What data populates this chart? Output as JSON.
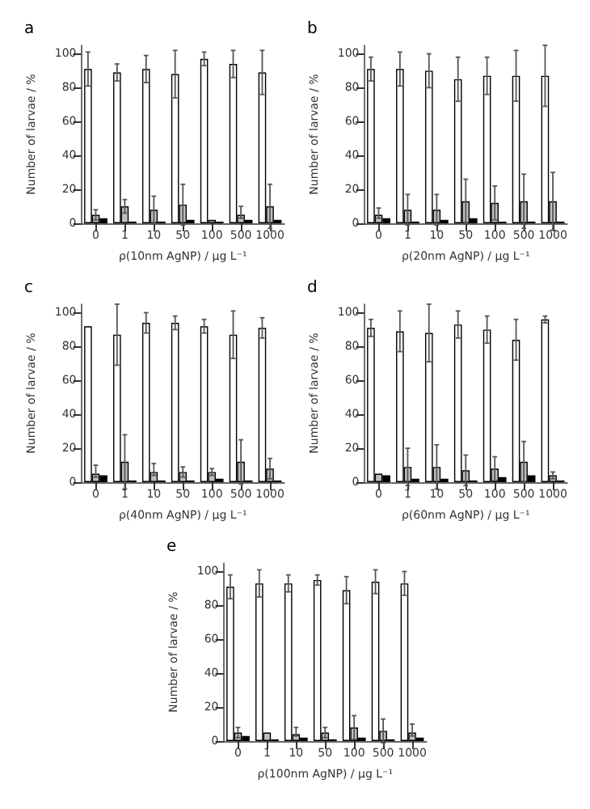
{
  "chart_data": [
    {
      "type": "bar",
      "title": "a",
      "xlabel": "ρ(10nm AgNP) / µg L⁻¹",
      "ylabel": "Number of larvae / %",
      "categories": [
        "0",
        "1",
        "10",
        "50",
        "100",
        "500",
        "1000"
      ],
      "ylim": [
        0,
        105
      ],
      "yticks": [
        0,
        20,
        40,
        60,
        80,
        100
      ],
      "series": [
        {
          "color": "#ffffff",
          "values": [
            91,
            89,
            91,
            88,
            97,
            94,
            89
          ],
          "errors": [
            10,
            5,
            8,
            14,
            4,
            8,
            13
          ]
        },
        {
          "color": "#bfbfbf",
          "values": [
            5,
            10,
            8,
            11,
            2,
            5,
            10
          ],
          "errors": [
            3,
            4,
            8,
            12,
            null,
            [
              3,
              10
            ],
            13
          ]
        },
        {
          "color": "#000000",
          "values": [
            3,
            1,
            1,
            2,
            1,
            2,
            2
          ]
        }
      ]
    },
    {
      "type": "bar",
      "title": "b",
      "xlabel": "ρ(20nm AgNP) / µg L⁻¹",
      "ylabel": "Number of larvae / %",
      "categories": [
        "0",
        "1",
        "10",
        "50",
        "100",
        "500",
        "1000"
      ],
      "ylim": [
        0,
        105
      ],
      "yticks": [
        0,
        20,
        40,
        60,
        80,
        100
      ],
      "series": [
        {
          "color": "#ffffff",
          "values": [
            91,
            91,
            90,
            85,
            87,
            87,
            87
          ],
          "errors": [
            7,
            10,
            10,
            13,
            11,
            15,
            18
          ]
        },
        {
          "color": "#bfbfbf",
          "values": [
            5,
            8,
            8,
            13,
            12,
            13,
            13
          ],
          "errors": [
            [
              3,
              9
            ],
            9,
            9,
            13,
            10,
            16,
            17
          ]
        },
        {
          "color": "#000000",
          "values": [
            3,
            1,
            2,
            3,
            1,
            1,
            1
          ]
        }
      ]
    },
    {
      "type": "bar",
      "title": "c",
      "xlabel": "ρ(40nm AgNP) / µg L⁻¹",
      "ylabel": "Number of larvae / %",
      "categories": [
        "0",
        "1",
        "10",
        "50",
        "100",
        "500",
        "1000"
      ],
      "ylim": [
        0,
        105
      ],
      "yticks": [
        0,
        20,
        40,
        60,
        80,
        100
      ],
      "series": [
        {
          "color": "#ffffff",
          "values": [
            92,
            87,
            94,
            94,
            92,
            87,
            91
          ],
          "errors": [
            null,
            18,
            6,
            4,
            4,
            14,
            6
          ]
        },
        {
          "color": "#bfbfbf",
          "values": [
            5,
            12,
            6,
            6,
            6,
            12,
            8
          ],
          "errors": [
            [
              3,
              10
            ],
            16,
            [
              4,
              11
            ],
            3,
            2,
            13,
            6
          ]
        },
        {
          "color": "#000000",
          "values": [
            4,
            1,
            1,
            1,
            2,
            1,
            1
          ]
        }
      ]
    },
    {
      "type": "bar",
      "title": "d",
      "xlabel": "ρ(60nm AgNP) / µg L⁻¹",
      "ylabel": "Number of larvae / %",
      "categories": [
        "0",
        "1",
        "10",
        "50",
        "100",
        "500",
        "1000"
      ],
      "ylim": [
        0,
        105
      ],
      "yticks": [
        0,
        20,
        40,
        60,
        80,
        100
      ],
      "series": [
        {
          "color": "#ffffff",
          "values": [
            91,
            89,
            88,
            93,
            90,
            84,
            96
          ],
          "errors": [
            5,
            12,
            17,
            8,
            8,
            12,
            2
          ]
        },
        {
          "color": "#bfbfbf",
          "values": [
            5,
            9,
            9,
            7,
            8,
            12,
            4
          ],
          "errors": [
            null,
            11,
            13,
            9,
            7,
            12,
            2
          ]
        },
        {
          "color": "#000000",
          "values": [
            4,
            2,
            2,
            1,
            3,
            4,
            1
          ]
        }
      ]
    },
    {
      "type": "bar",
      "title": "e",
      "xlabel": "ρ(100nm AgNP) / µg L⁻¹",
      "ylabel": "Number of larvae / %",
      "categories": [
        "0",
        "1",
        "10",
        "50",
        "100",
        "500",
        "1000"
      ],
      "ylim": [
        0,
        105
      ],
      "yticks": [
        0,
        20,
        40,
        60,
        80,
        100
      ],
      "series": [
        {
          "color": "#ffffff",
          "values": [
            91,
            93,
            93,
            95,
            89,
            94,
            93
          ],
          "errors": [
            7,
            8,
            5,
            3,
            8,
            7,
            7
          ]
        },
        {
          "color": "#bfbfbf",
          "values": [
            5,
            5,
            4,
            5,
            8,
            6,
            5
          ],
          "errors": [
            3,
            null,
            [
              3,
              8
            ],
            3,
            7,
            7,
            [
              3,
              10
            ]
          ]
        },
        {
          "color": "#000000",
          "values": [
            3,
            1,
            2,
            1,
            2,
            1,
            2
          ]
        }
      ]
    }
  ]
}
